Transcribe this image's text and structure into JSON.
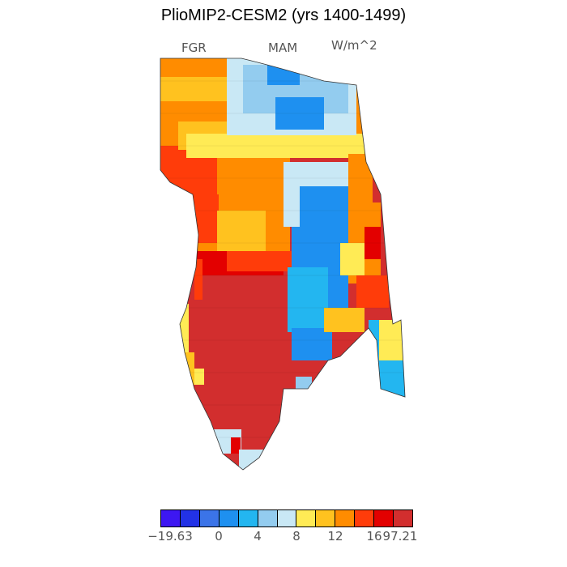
{
  "title": "PlioMIP2-CESM2 (yrs 1400-1499)",
  "labels": {
    "left": "FGR",
    "center": "MAM",
    "right": "W/m^2"
  },
  "colorbar": {
    "colors": [
      "#3d17f2",
      "#2232e6",
      "#3b74e8",
      "#1e90f0",
      "#23b6f0",
      "#93ccef",
      "#c9e8f5",
      "#ffeb55",
      "#ffc21f",
      "#ff8c00",
      "#ff3c0a",
      "#e30000",
      "#d22e2e"
    ],
    "tick_labels": [
      "−19.63",
      "0",
      "4",
      "8",
      "12",
      "16",
      "97.21"
    ]
  },
  "palette": {
    "red_dark": "#d22e2e",
    "red": "#e30000",
    "red_orange": "#ff3c0a",
    "orange": "#ff8c00",
    "amber": "#ffc21f",
    "yellow": "#ffeb55",
    "very_light_blue": "#c9e8f5",
    "light_blue": "#93ccef",
    "cyan": "#23b6f0",
    "blue": "#1e90f0"
  }
}
